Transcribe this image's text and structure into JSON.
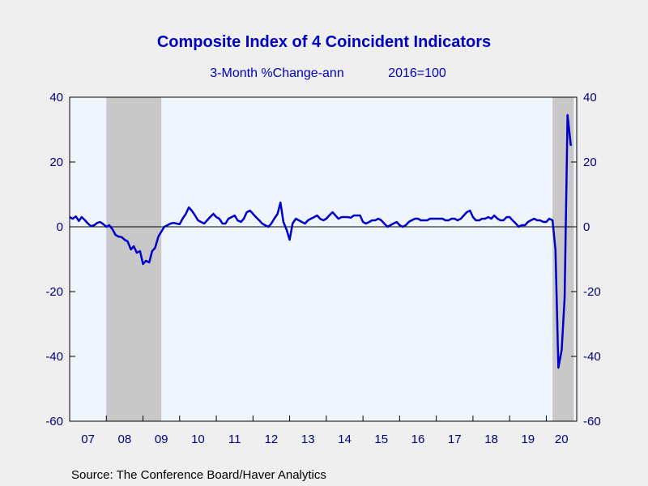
{
  "chart_data": {
    "type": "line",
    "title": "Composite Index of 4 Coincident Indicators",
    "subtitle_left": "3-Month %Change-ann",
    "subtitle_right": "2016=100",
    "source": "Source:  The Conference Board/Haver Analytics",
    "xlabel": "",
    "ylabel": "",
    "ylim": [
      -60,
      40
    ],
    "y_ticks": [
      "40",
      "20",
      "0",
      "-20",
      "-40",
      "-60"
    ],
    "x_tick_labels": [
      "07",
      "08",
      "09",
      "10",
      "11",
      "12",
      "13",
      "14",
      "15",
      "16",
      "17",
      "18",
      "19",
      "20"
    ],
    "xlim": [
      2007.0,
      2020.83
    ],
    "grid": false,
    "zero_line": true,
    "recessions": [
      {
        "start": 2008.0,
        "end": 2009.5
      },
      {
        "start": 2020.17,
        "end": 2020.75
      }
    ],
    "colors": {
      "line": "#0000c8",
      "plot_background": "#eef5fd",
      "recession_shade": "#c8c8c8",
      "text": "#000080",
      "title": "#0000c0"
    },
    "series": [
      {
        "x": [
          2007.0,
          2007.08,
          2007.17,
          2007.25,
          2007.33,
          2007.42,
          2007.5,
          2007.58,
          2007.67,
          2007.75,
          2007.83,
          2007.92,
          2008.0,
          2008.08,
          2008.17,
          2008.25,
          2008.33,
          2008.42,
          2008.5,
          2008.58,
          2008.67,
          2008.75,
          2008.83,
          2008.92,
          2009.0,
          2009.08,
          2009.17,
          2009.25,
          2009.33,
          2009.42,
          2009.5,
          2009.58,
          2009.67,
          2009.75,
          2009.83,
          2009.92,
          2010.0,
          2010.08,
          2010.17,
          2010.25,
          2010.33,
          2010.42,
          2010.5,
          2010.58,
          2010.67,
          2010.75,
          2010.83,
          2010.92,
          2011.0,
          2011.08,
          2011.17,
          2011.25,
          2011.33,
          2011.42,
          2011.5,
          2011.58,
          2011.67,
          2011.75,
          2011.83,
          2011.92,
          2012.0,
          2012.08,
          2012.17,
          2012.25,
          2012.33,
          2012.42,
          2012.5,
          2012.58,
          2012.67,
          2012.75,
          2012.83,
          2012.92,
          2013.0,
          2013.08,
          2013.17,
          2013.25,
          2013.33,
          2013.42,
          2013.5,
          2013.58,
          2013.67,
          2013.75,
          2013.83,
          2013.92,
          2014.0,
          2014.08,
          2014.17,
          2014.25,
          2014.33,
          2014.42,
          2014.5,
          2014.58,
          2014.67,
          2014.75,
          2014.83,
          2014.92,
          2015.0,
          2015.08,
          2015.17,
          2015.25,
          2015.33,
          2015.42,
          2015.5,
          2015.58,
          2015.67,
          2015.75,
          2015.83,
          2015.92,
          2016.0,
          2016.08,
          2016.17,
          2016.25,
          2016.33,
          2016.42,
          2016.5,
          2016.58,
          2016.67,
          2016.75,
          2016.83,
          2016.92,
          2017.0,
          2017.08,
          2017.17,
          2017.25,
          2017.33,
          2017.42,
          2017.5,
          2017.58,
          2017.67,
          2017.75,
          2017.83,
          2017.92,
          2018.0,
          2018.08,
          2018.17,
          2018.25,
          2018.33,
          2018.42,
          2018.5,
          2018.58,
          2018.67,
          2018.75,
          2018.83,
          2018.92,
          2019.0,
          2019.08,
          2019.17,
          2019.25,
          2019.33,
          2019.42,
          2019.5,
          2019.58,
          2019.67,
          2019.75,
          2019.83,
          2019.92,
          2020.0,
          2020.08,
          2020.17,
          2020.25,
          2020.33,
          2020.42,
          2020.5,
          2020.58,
          2020.67
        ],
        "y": [
          3.0,
          2.5,
          3.2,
          1.8,
          3.0,
          2.0,
          1.0,
          0.2,
          0.5,
          1.2,
          1.5,
          0.8,
          0.0,
          0.5,
          -0.8,
          -2.5,
          -3.0,
          -3.2,
          -4.0,
          -4.5,
          -7.0,
          -6.0,
          -8.0,
          -7.5,
          -11.5,
          -10.5,
          -11.0,
          -7.5,
          -6.5,
          -3.0,
          -1.5,
          0.0,
          0.5,
          1.0,
          1.2,
          1.0,
          0.8,
          2.5,
          4.0,
          6.0,
          5.0,
          3.5,
          2.0,
          1.5,
          1.0,
          2.0,
          3.0,
          4.0,
          3.0,
          2.5,
          1.0,
          1.0,
          2.5,
          3.0,
          3.5,
          2.0,
          1.5,
          2.5,
          4.5,
          5.0,
          4.0,
          3.0,
          2.0,
          1.0,
          0.5,
          0.0,
          1.0,
          2.5,
          4.0,
          7.5,
          1.5,
          -1.0,
          -4.0,
          1.0,
          2.5,
          2.0,
          1.5,
          1.0,
          2.0,
          2.5,
          3.0,
          3.5,
          2.5,
          2.0,
          2.5,
          3.5,
          4.5,
          3.5,
          2.5,
          3.0,
          3.0,
          3.0,
          2.8,
          3.5,
          3.5,
          3.5,
          1.5,
          1.0,
          1.5,
          2.0,
          2.0,
          2.5,
          2.0,
          1.0,
          0.0,
          0.5,
          1.0,
          1.5,
          0.5,
          0.0,
          0.5,
          1.5,
          2.0,
          2.5,
          2.5,
          2.0,
          2.0,
          2.0,
          2.5,
          2.5,
          2.5,
          2.5,
          2.5,
          2.0,
          2.0,
          2.5,
          2.5,
          2.0,
          2.5,
          3.5,
          4.5,
          5.0,
          3.0,
          2.0,
          2.0,
          2.5,
          2.5,
          3.0,
          2.5,
          3.5,
          2.5,
          2.0,
          2.0,
          3.0,
          3.0,
          2.0,
          1.0,
          0.0,
          0.5,
          0.5,
          1.5,
          2.0,
          2.5,
          2.0,
          2.0,
          1.5,
          1.5,
          2.5,
          2.0,
          -7.0,
          -43.5,
          -38.0,
          -22.0,
          34.5,
          25.0
        ]
      }
    ]
  }
}
